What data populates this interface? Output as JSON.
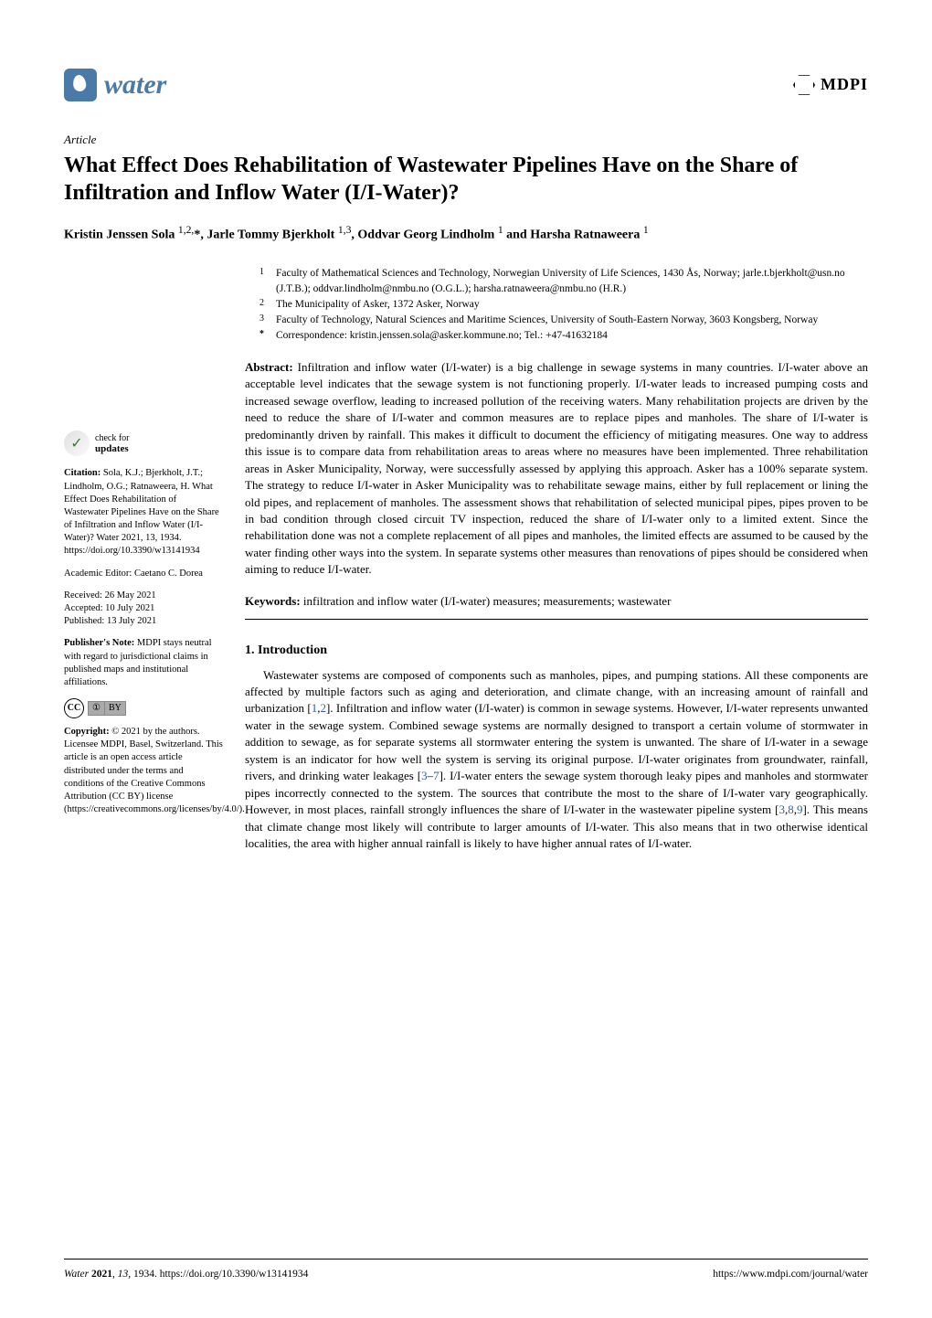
{
  "journal": {
    "name": "water",
    "publisher": "MDPI"
  },
  "article_type": "Article",
  "title": "What Effect Does Rehabilitation of Wastewater Pipelines Have on the Share of Infiltration and Inflow Water (I/I-Water)?",
  "authors_line": "Kristin Jenssen Sola 1,2,*, Jarle Tommy Bjerkholt 1,3, Oddvar Georg Lindholm 1 and Harsha Ratnaweera 1",
  "affiliations": [
    {
      "num": "1",
      "text": "Faculty of Mathematical Sciences and Technology, Norwegian University of Life Sciences, 1430 Ås, Norway; jarle.t.bjerkholt@usn.no (J.T.B.); oddvar.lindholm@nmbu.no (O.G.L.); harsha.ratnaweera@nmbu.no (H.R.)"
    },
    {
      "num": "2",
      "text": "The Municipality of Asker, 1372 Asker, Norway"
    },
    {
      "num": "3",
      "text": "Faculty of Technology, Natural Sciences and Maritime Sciences, University of South-Eastern Norway, 3603 Kongsberg, Norway"
    },
    {
      "num": "*",
      "text": "Correspondence: kristin.jenssen.sola@asker.kommune.no; Tel.: +47-41632184"
    }
  ],
  "abstract_label": "Abstract:",
  "abstract": " Infiltration and inflow water (I/I-water) is a big challenge in sewage systems in many countries. I/I-water above an acceptable level indicates that the sewage system is not functioning properly. I/I-water leads to increased pumping costs and increased sewage overflow, leading to increased pollution of the receiving waters. Many rehabilitation projects are driven by the need to reduce the share of I/I-water and common measures are to replace pipes and manholes. The share of I/I-water is predominantly driven by rainfall. This makes it difficult to document the efficiency of mitigating measures. One way to address this issue is to compare data from rehabilitation areas to areas where no measures have been implemented. Three rehabilitation areas in Asker Municipality, Norway, were successfully assessed by applying this approach. Asker has a 100% separate system. The strategy to reduce I/I-water in Asker Municipality was to rehabilitate sewage mains, either by full replacement or lining the old pipes, and replacement of manholes. The assessment shows that rehabilitation of selected municipal pipes, pipes proven to be in bad condition through closed circuit TV inspection, reduced the share of I/I-water only to a limited extent. Since the rehabilitation done was not a complete replacement of all pipes and manholes, the limited effects are assumed to be caused by the water finding other ways into the system. In separate systems other measures than renovations of pipes should be considered when aiming to reduce I/I-water.",
  "keywords_label": "Keywords:",
  "keywords": " infiltration and inflow water (I/I-water) measures; measurements; wastewater",
  "section_heading": "1. Introduction",
  "intro_pre": "Wastewater systems are composed of components such as manholes, pipes, and pumping stations. All these components are affected by multiple factors such as aging and deterioration, and climate change, with an increasing amount of rainfall and urbanization [",
  "ref1": "1",
  "ref2": "2",
  "intro_mid1": "]. Infiltration and inflow water (I/I-water) is common in sewage systems. However, I/I-water represents unwanted water in the sewage system. Combined sewage systems are normally designed to transport a certain volume of stormwater in addition to sewage, as for separate systems all stormwater entering the system is unwanted. The share of I/I-water in a sewage system is an indicator for how well the system is serving its original purpose. I/I-water originates from groundwater, rainfall, rivers, and drinking water leakages [",
  "ref3": "3",
  "ref7": "7",
  "intro_mid2": "]. I/I-water enters the sewage system thorough leaky pipes and manholes and stormwater pipes incorrectly connected to the system. The sources that contribute the most to the share of I/I-water vary geographically. However, in most places, rainfall strongly influences the share of I/I-water in the wastewater pipeline system [",
  "ref8": "8",
  "ref9": "9",
  "intro_post": "]. This means that climate change most likely will contribute to larger amounts of I/I-water. This also means that in two otherwise identical localities, the area with higher annual rainfall is likely to have higher annual rates of I/I-water.",
  "sidebar": {
    "check_label": "check for",
    "updates_label": "updates",
    "citation_label": "Citation:",
    "citation": " Sola, K.J.; Bjerkholt, J.T.; Lindholm, O.G.; Ratnaweera, H. What Effect Does Rehabilitation of Wastewater Pipelines Have on the Share of Infiltration and Inflow Water (I/I-Water)? Water 2021, 13, 1934. https://doi.org/10.3390/w13141934",
    "editor_label": "Academic Editor: ",
    "editor": "Caetano C. Dorea",
    "received": "Received: 26 May 2021",
    "accepted": "Accepted: 10 July 2021",
    "published": "Published: 13 July 2021",
    "pubnote_label": "Publisher's Note:",
    "pubnote": " MDPI stays neutral with regard to jurisdictional claims in published maps and institutional affiliations.",
    "copyright_label": "Copyright:",
    "copyright": " © 2021 by the authors. Licensee MDPI, Basel, Switzerland. This article is an open access article distributed under the terms and conditions of the Creative Commons Attribution (CC BY) license (https://creativecommons.org/licenses/by/4.0/)."
  },
  "footer": {
    "left": "Water 2021, 13, 1934. https://doi.org/10.3390/w13141934",
    "right": "https://www.mdpi.com/journal/water"
  },
  "colors": {
    "journal_blue": "#4a7ba8",
    "ref_blue": "#3060b0",
    "text": "#000000",
    "background": "#ffffff"
  }
}
